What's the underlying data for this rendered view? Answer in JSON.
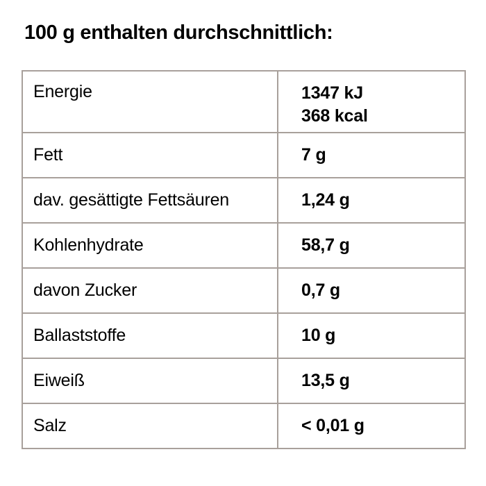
{
  "title": "100 g enthalten durchschnittlich:",
  "colors": {
    "background": "#ffffff",
    "text": "#000000",
    "table_border": "#a8a09b"
  },
  "table": {
    "rows": [
      {
        "label": "Energie",
        "value": [
          "1347 kJ",
          "368 kcal"
        ]
      },
      {
        "label": "Fett",
        "value": [
          "7 g"
        ]
      },
      {
        "label": "dav. gesättigte Fettsäuren",
        "value": [
          "1,24 g"
        ]
      },
      {
        "label": "Kohlenhydrate",
        "value": [
          "58,7 g"
        ]
      },
      {
        "label": "davon Zucker",
        "value": [
          "0,7 g"
        ]
      },
      {
        "label": "Ballaststoffe",
        "value": [
          "10 g"
        ]
      },
      {
        "label": "Eiweiß",
        "value": [
          "13,5 g"
        ]
      },
      {
        "label": "Salz",
        "value": [
          "< 0,01 g"
        ]
      }
    ]
  }
}
